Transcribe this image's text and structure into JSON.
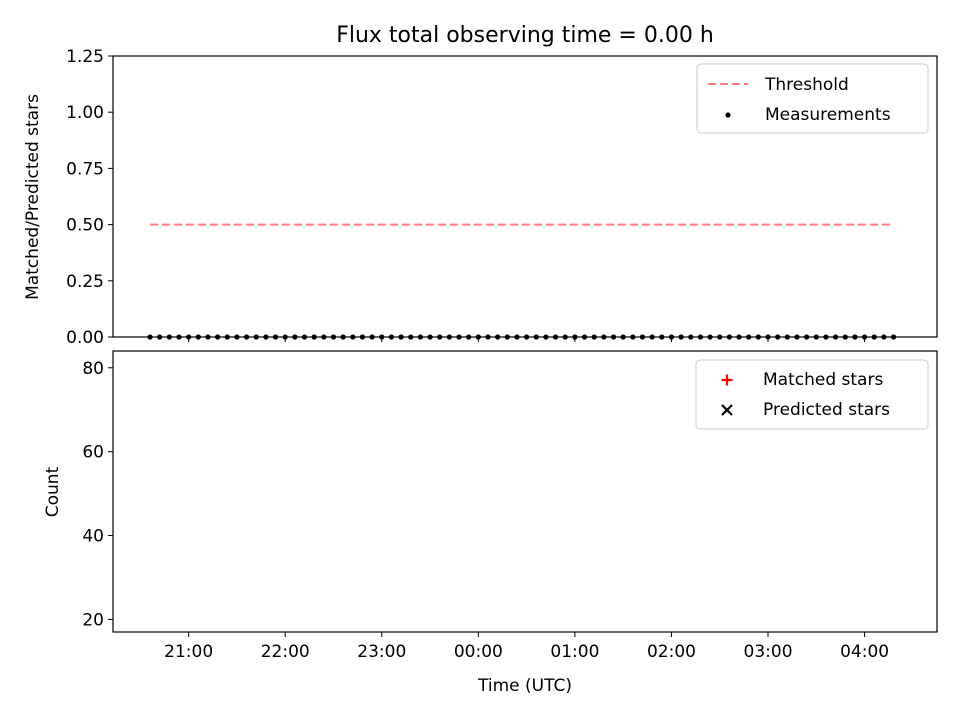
{
  "chart_data": [
    {
      "type": "scatter",
      "title": "Flux total observing time = 0.00 h",
      "xlabel": "",
      "ylabel": "Matched/Predicted stars",
      "ylim": [
        0,
        1.25
      ],
      "yticks": [
        0.0,
        0.25,
        0.5,
        0.75,
        1.0,
        1.25
      ],
      "ytick_labels": [
        "0.00",
        "0.25",
        "0.50",
        "0.75",
        "1.00",
        "1.25"
      ],
      "legend_position": "top-right",
      "legend": [
        "Threshold",
        "Measurements"
      ],
      "colors": {
        "threshold": "#ff7f7f",
        "measurements": "#000000"
      },
      "threshold": {
        "value": 0.5,
        "x_range": [
          "20:36",
          "04:18"
        ]
      },
      "series": [
        {
          "name": "Measurements",
          "x": [
            "20:36",
            "20:42",
            "20:48",
            "20:54",
            "21:00",
            "21:06",
            "21:12",
            "21:18",
            "21:24",
            "21:30",
            "21:36",
            "21:42",
            "21:48",
            "21:54",
            "22:00",
            "22:06",
            "22:12",
            "22:18",
            "22:24",
            "22:30",
            "22:36",
            "22:42",
            "22:48",
            "22:54",
            "23:00",
            "23:06",
            "23:12",
            "23:18",
            "23:24",
            "23:30",
            "23:36",
            "23:42",
            "23:48",
            "23:54",
            "00:00",
            "00:06",
            "00:12",
            "00:18",
            "00:24",
            "00:30",
            "00:36",
            "00:42",
            "00:48",
            "00:54",
            "01:00",
            "01:06",
            "01:12",
            "01:18",
            "01:24",
            "01:30",
            "01:36",
            "01:42",
            "01:48",
            "01:54",
            "02:00",
            "02:06",
            "02:12",
            "02:18",
            "02:24",
            "02:30",
            "02:36",
            "02:42",
            "02:48",
            "02:54",
            "03:00",
            "03:06",
            "03:12",
            "03:18",
            "03:24",
            "03:30",
            "03:36",
            "03:42",
            "03:48",
            "03:54",
            "04:00",
            "04:06",
            "04:12",
            "04:18"
          ],
          "y": [
            0.0,
            0.0,
            0.0,
            0.0,
            0.0,
            0.0,
            0.0,
            0.0,
            0.0,
            0.0,
            0.0,
            0.0,
            0.0,
            0.0,
            0.0,
            0.0,
            0.0,
            0.0,
            0.0,
            0.0,
            0.0,
            0.0,
            0.0,
            0.0,
            0.0,
            0.0,
            0.0,
            0.0,
            0.0,
            0.0,
            0.0,
            0.0,
            0.0,
            0.0,
            0.0,
            0.0,
            0.0,
            0.0,
            0.0,
            0.0,
            0.0,
            0.0,
            0.0,
            0.0,
            0.0,
            0.0,
            0.0,
            0.0,
            0.0,
            0.0,
            0.0,
            0.0,
            0.0,
            0.0,
            0.0,
            0.0,
            0.0,
            0.0,
            0.0,
            0.0,
            0.0,
            0.0,
            0.0,
            0.0,
            0.0,
            0.0,
            0.0,
            0.0,
            0.0,
            0.0,
            0.0,
            0.0,
            0.0,
            0.0,
            0.0,
            0.0,
            0.0,
            0.0
          ]
        }
      ]
    },
    {
      "type": "scatter",
      "title": "",
      "xlabel": "Time (UTC)",
      "ylabel": "Count",
      "ylim": [
        17,
        84
      ],
      "yticks": [
        20,
        40,
        60,
        80
      ],
      "ytick_labels": [
        "20",
        "40",
        "60",
        "80"
      ],
      "xlim": [
        "20:13",
        "04:45"
      ],
      "xtick_labels": [
        "21:00",
        "22:00",
        "23:00",
        "00:00",
        "01:00",
        "02:00",
        "03:00",
        "04:00"
      ],
      "legend_position": "top-right",
      "legend": [
        "Matched stars",
        "Predicted stars"
      ],
      "colors": {
        "matched": "#ff0000",
        "predicted": "#000000"
      },
      "series": [
        {
          "name": "Matched stars",
          "x": [],
          "y": []
        },
        {
          "name": "Predicted stars",
          "x": [],
          "y": []
        }
      ]
    }
  ]
}
